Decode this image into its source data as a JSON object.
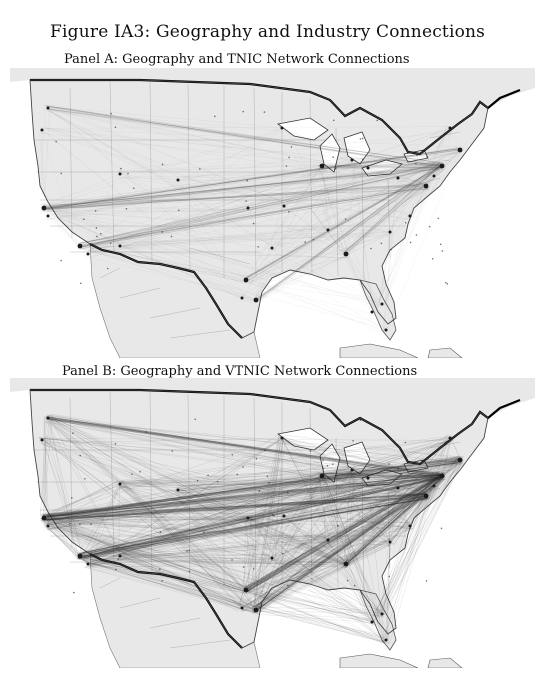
{
  "figure": {
    "title": "Figure IA3: Geography and Industry Connections"
  },
  "panels": [
    {
      "id": "A",
      "title": "Panel A: Geography and TNIC Network Connections",
      "network": "TNIC",
      "density": "low"
    },
    {
      "id": "B",
      "title": "Panel B: Geography and VTNIC Network Connections",
      "network": "VTNIC",
      "density": "high"
    }
  ],
  "colors": {
    "land": "#e8e8e8",
    "ocean": "#ffffff",
    "state_border": "#9a9a9a",
    "country_border": "#000000",
    "edge": "#2e2e2e",
    "node": "#1a1a1a"
  },
  "map_region": "Continental United States with parts of Canada, Mexico, and the Caribbean"
}
